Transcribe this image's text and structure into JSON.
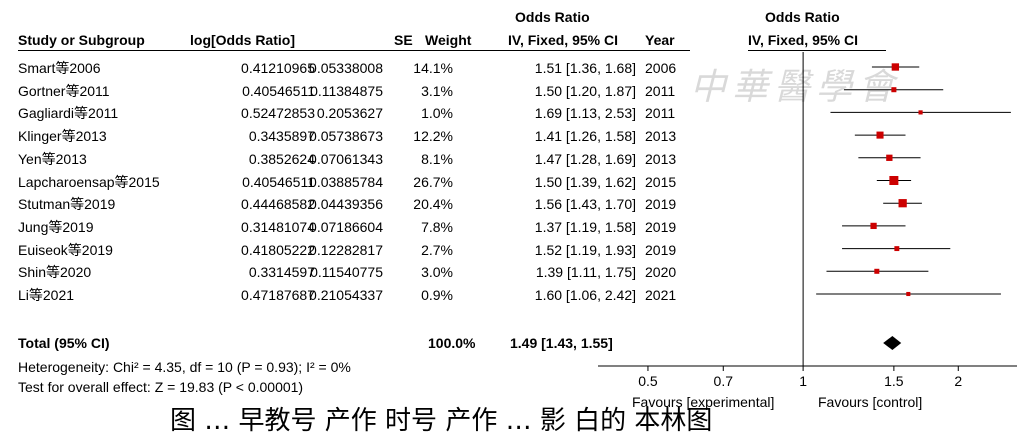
{
  "headers": {
    "group_title_left": "Odds Ratio",
    "group_title_right": "Odds Ratio",
    "study": "Study or Subgroup",
    "log_or": "log[Odds Ratio]",
    "se": "SE",
    "weight": "Weight",
    "ci_left": "IV, Fixed, 95% CI",
    "year": "Year",
    "ci_right": "IV, Fixed, 95% CI"
  },
  "studies": [
    {
      "name": "Smart等2006",
      "log_or": "0.41210965",
      "se": "0.05338008",
      "weight": "14.1%",
      "ci": "1.51 [1.36, 1.68]",
      "year": "2006"
    },
    {
      "name": "Gortner等2011",
      "log_or": "0.40546511",
      "se": "0.11384875",
      "weight": "3.1%",
      "ci": "1.50 [1.20, 1.87]",
      "year": "2011"
    },
    {
      "name": "Gagliardi等2011",
      "log_or": "0.52472853",
      "se": "0.2053627",
      "weight": "1.0%",
      "ci": "1.69 [1.13, 2.53]",
      "year": "2011"
    },
    {
      "name": "Klinger等2013",
      "log_or": "0.3435897",
      "se": "0.05738673",
      "weight": "12.2%",
      "ci": "1.41 [1.26, 1.58]",
      "year": "2013"
    },
    {
      "name": "Yen等2013",
      "log_or": "0.3852624",
      "se": "0.07061343",
      "weight": "8.1%",
      "ci": "1.47 [1.28, 1.69]",
      "year": "2013"
    },
    {
      "name": "Lapcharoensap等2015",
      "log_or": "0.40546511",
      "se": "0.03885784",
      "weight": "26.7%",
      "ci": "1.50 [1.39, 1.62]",
      "year": "2015"
    },
    {
      "name": "Stutman等2019",
      "log_or": "0.44468582",
      "se": "0.04439356",
      "weight": "20.4%",
      "ci": "1.56 [1.43, 1.70]",
      "year": "2019"
    },
    {
      "name": "Jung等2019",
      "log_or": "0.31481074",
      "se": "0.07186604",
      "weight": "7.8%",
      "ci": "1.37 [1.19, 1.58]",
      "year": "2019"
    },
    {
      "name": "Euiseok等2019",
      "log_or": "0.41805222",
      "se": "0.12282817",
      "weight": "2.7%",
      "ci": "1.52 [1.19, 1.93]",
      "year": "2019"
    },
    {
      "name": "Shin等2020",
      "log_or": "0.3314597",
      "se": "0.11540775",
      "weight": "3.0%",
      "ci": "1.39 [1.11, 1.75]",
      "year": "2020"
    },
    {
      "name": "Li等2021",
      "log_or": "0.47187687",
      "se": "0.21054337",
      "weight": "0.9%",
      "ci": "1.60 [1.06, 2.42]",
      "year": "2021"
    }
  ],
  "total": {
    "label": "Total (95% CI)",
    "weight": "100.0%",
    "ci": "1.49 [1.43, 1.55]"
  },
  "heterogeneity": "Heterogeneity: Chi² = 4.35, df = 10 (P = 0.93); I² = 0%",
  "overall_effect": "Test for overall effect: Z = 19.83 (P < 0.00001)",
  "favours_left": "Favours [experimental]",
  "favours_right": "Favours [control]",
  "watermark": "中華醫學會",
  "caption": "图 … 早教号 产作 时号 产作 … 影 白的 本林图",
  "colors": {
    "marker": "#cc0000",
    "diamond": "#000000",
    "watermark": "#d9d9d9"
  },
  "chart_data": {
    "type": "forest",
    "scale": "log",
    "xlim": [
      0.4,
      2.6
    ],
    "ticks": [
      0.5,
      0.7,
      1,
      1.5,
      2
    ],
    "tick_labels": [
      "0.5",
      "0.7",
      "1",
      "1.5",
      "2"
    ],
    "reference_line": 1,
    "studies": [
      {
        "name": "Smart等2006",
        "or": 1.51,
        "lo": 1.36,
        "hi": 1.68,
        "weight": 14.1
      },
      {
        "name": "Gortner等2011",
        "or": 1.5,
        "lo": 1.2,
        "hi": 1.87,
        "weight": 3.1
      },
      {
        "name": "Gagliardi等2011",
        "or": 1.69,
        "lo": 1.13,
        "hi": 2.53,
        "weight": 1.0
      },
      {
        "name": "Klinger等2013",
        "or": 1.41,
        "lo": 1.26,
        "hi": 1.58,
        "weight": 12.2
      },
      {
        "name": "Yen等2013",
        "or": 1.47,
        "lo": 1.28,
        "hi": 1.69,
        "weight": 8.1
      },
      {
        "name": "Lapcharoensap等2015",
        "or": 1.5,
        "lo": 1.39,
        "hi": 1.62,
        "weight": 26.7
      },
      {
        "name": "Stutman等2019",
        "or": 1.56,
        "lo": 1.43,
        "hi": 1.7,
        "weight": 20.4
      },
      {
        "name": "Jung等2019",
        "or": 1.37,
        "lo": 1.19,
        "hi": 1.58,
        "weight": 7.8
      },
      {
        "name": "Euiseok等2019",
        "or": 1.52,
        "lo": 1.19,
        "hi": 1.93,
        "weight": 2.7
      },
      {
        "name": "Shin等2020",
        "or": 1.39,
        "lo": 1.11,
        "hi": 1.75,
        "weight": 3.0
      },
      {
        "name": "Li等2021",
        "or": 1.6,
        "lo": 1.06,
        "hi": 2.42,
        "weight": 0.9
      }
    ],
    "pooled": {
      "or": 1.49,
      "lo": 1.43,
      "hi": 1.55
    }
  }
}
